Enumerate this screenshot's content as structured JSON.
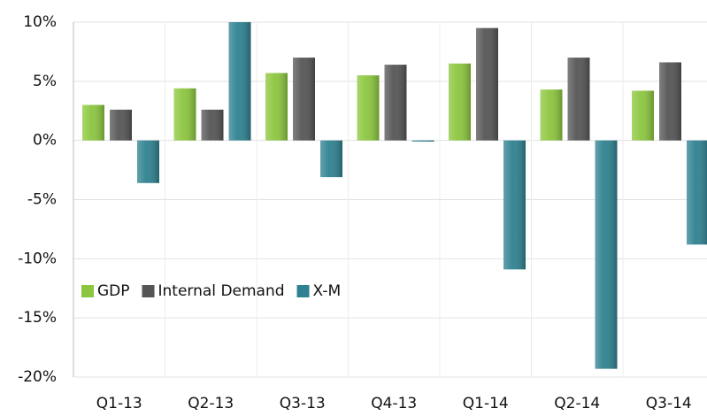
{
  "chart_data": {
    "type": "bar",
    "categories": [
      "Q1-13",
      "Q2-13",
      "Q3-13",
      "Q4-13",
      "Q1-14",
      "Q2-14",
      "Q3-14"
    ],
    "series": [
      {
        "name": "GDP",
        "color": "#8cc63e",
        "values": [
          3.0,
          4.4,
          5.7,
          5.5,
          6.5,
          4.3,
          4.2
        ]
      },
      {
        "name": "Internal Demand",
        "color": "#555555",
        "values": [
          2.6,
          2.6,
          7.0,
          6.4,
          9.5,
          7.0,
          6.6
        ]
      },
      {
        "name": "X-M",
        "color": "#2e8190",
        "values": [
          -3.6,
          10.0,
          -3.1,
          -0.1,
          -10.9,
          -19.3,
          -8.8
        ]
      }
    ],
    "ylim": [
      -20,
      10
    ],
    "yticks": [
      {
        "value": -20,
        "label": "-20%"
      },
      {
        "value": -15,
        "label": "-15%"
      },
      {
        "value": -10,
        "label": "-10%"
      },
      {
        "value": -5,
        "label": "-5%"
      },
      {
        "value": 0,
        "label": "0%"
      },
      {
        "value": 5,
        "label": "5%"
      },
      {
        "value": 10,
        "label": "10%"
      }
    ],
    "grid": true,
    "legend": "lower left"
  }
}
